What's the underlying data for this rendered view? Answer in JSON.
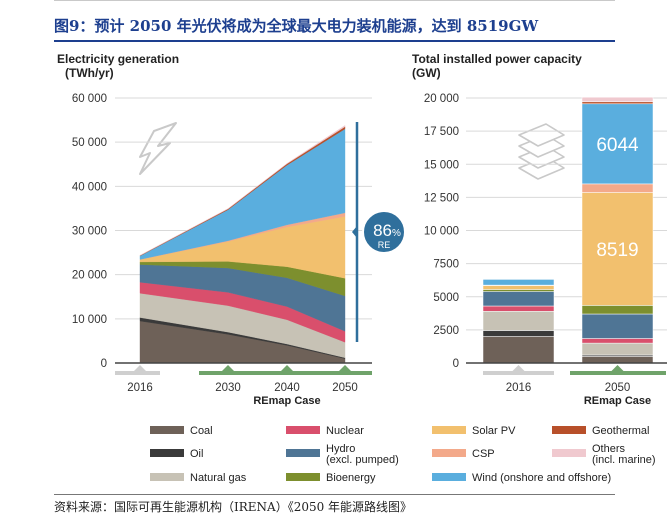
{
  "figure_title": "图9：预计 2050 年光伏将成为全球最大电力装机能源，达到 8519GW",
  "source_note": "资料来源：国际可再生能源机构（IRENA）《2050 年能源路线图》",
  "chart_data": [
    {
      "type": "area",
      "title_line1": "Electricity generation",
      "title_line2": "(TWh/yr)",
      "x": [
        2016,
        2030,
        2040,
        2050
      ],
      "x_ticks": [
        "2016",
        "2030",
        "2040",
        "2050"
      ],
      "xlabel": "REmap Case",
      "ylim": [
        0,
        60000
      ],
      "y_ticks": [
        0,
        10000,
        20000,
        30000,
        40000,
        50000,
        60000
      ],
      "y_tick_labels": [
        "0",
        "10 000",
        "20 000",
        "30 000",
        "40 000",
        "50 000",
        "60 000"
      ],
      "grid": true,
      "series": [
        {
          "name": "Coal",
          "color": "#6e6158",
          "values": [
            9500,
            6500,
            4000,
            1000
          ]
        },
        {
          "name": "Oil",
          "color": "#3a3a3a",
          "values": [
            800,
            500,
            300,
            200
          ]
        },
        {
          "name": "Natural gas",
          "color": "#c7c2b5",
          "values": [
            5500,
            6000,
            5500,
            3500
          ]
        },
        {
          "name": "Nuclear",
          "color": "#d94f6c",
          "values": [
            2500,
            3000,
            3000,
            2500
          ]
        },
        {
          "name": "Hydro (excl. pumped)",
          "color": "#4f7595",
          "values": [
            4000,
            5500,
            6500,
            8000
          ]
        },
        {
          "name": "Bioenergy",
          "color": "#7d8f2e",
          "values": [
            600,
            1500,
            2500,
            4000
          ]
        },
        {
          "name": "Solar PV",
          "color": "#f2c06e",
          "values": [
            500,
            4500,
            9000,
            14000
          ]
        },
        {
          "name": "CSP",
          "color": "#f3a98a",
          "values": [
            50,
            200,
            500,
            800
          ]
        },
        {
          "name": "Wind (onshore and offshore)",
          "color": "#5aaede",
          "values": [
            800,
            7000,
            13500,
            19000
          ]
        },
        {
          "name": "Geothermal",
          "color": "#b8502a",
          "values": [
            100,
            200,
            300,
            500
          ]
        },
        {
          "name": "Others (incl. marine)",
          "color": "#f0c9cf",
          "values": [
            20,
            50,
            100,
            300
          ]
        }
      ],
      "badge_value": "86",
      "badge_unit": "%",
      "badge_label": "RE"
    },
    {
      "type": "bar",
      "title_line1": "Total installed power capacity",
      "title_line2": "(GW)",
      "categories": [
        "2016",
        "2050"
      ],
      "xlabel": "REmap Case",
      "ylim": [
        0,
        20000
      ],
      "y_ticks": [
        0,
        2500,
        5000,
        7500,
        10000,
        12500,
        15000,
        17500,
        20000
      ],
      "y_tick_labels": [
        "0",
        "2500",
        "5000",
        "7500",
        "10 000",
        "12 500",
        "15 000",
        "17 500",
        "20 000"
      ],
      "grid": true,
      "series": [
        {
          "name": "Coal",
          "values": [
            2000,
            500
          ]
        },
        {
          "name": "Oil",
          "values": [
            450,
            100
          ]
        },
        {
          "name": "Natural gas",
          "values": [
            1450,
            900
          ]
        },
        {
          "name": "Nuclear",
          "values": [
            400,
            350
          ]
        },
        {
          "name": "Hydro (excl. pumped)",
          "values": [
            1100,
            1850
          ]
        },
        {
          "name": "Bioenergy",
          "values": [
            150,
            650
          ]
        },
        {
          "name": "Solar PV",
          "values": [
            300,
            8519
          ]
        },
        {
          "name": "CSP",
          "values": [
            30,
            650
          ]
        },
        {
          "name": "Wind (onshore and offshore)",
          "values": [
            450,
            6044
          ]
        },
        {
          "name": "Geothermal",
          "values": [
            20,
            150
          ]
        },
        {
          "name": "Others (incl. marine)",
          "values": [
            10,
            350
          ]
        }
      ],
      "bar_labels": [
        "8519",
        "6044"
      ]
    }
  ],
  "legend": [
    {
      "label": "Coal",
      "color": "#6e6158"
    },
    {
      "label": "Nuclear",
      "color": "#d94f6c"
    },
    {
      "label": "Solar PV",
      "color": "#f2c06e"
    },
    {
      "label": "Geothermal",
      "color": "#b8502a"
    },
    {
      "label": "Oil",
      "color": "#3a3a3a"
    },
    {
      "label": "Hydro\n(excl. pumped)",
      "color": "#4f7595"
    },
    {
      "label": "CSP",
      "color": "#f3a98a"
    },
    {
      "label": "Others\n(incl. marine)",
      "color": "#f0c9cf"
    },
    {
      "label": "Natural gas",
      "color": "#c7c2b5"
    },
    {
      "label": "Bioenergy",
      "color": "#7d8f2e"
    },
    {
      "label": "Wind (onshore and offshore)",
      "color": "#5aaede"
    }
  ],
  "colors": {
    "title_blue": "#1d3f8f",
    "axis_text": "#333333",
    "grid": "#d9d9d9",
    "remap_green": "#6fa36a",
    "badge_blue": "#2f6f9c",
    "icon_gray": "#c9c9c9"
  }
}
